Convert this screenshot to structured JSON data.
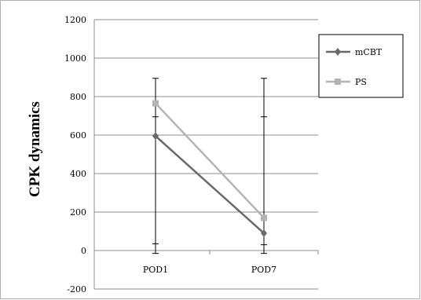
{
  "chart_data": {
    "type": "line",
    "title": "",
    "xlabel": "",
    "ylabel": "CPK dynamics",
    "categories": [
      "POD1",
      "POD7"
    ],
    "ylim": [
      -200,
      1200
    ],
    "yticks": [
      "1200",
      "1000",
      "800",
      "600",
      "400",
      "200",
      "0",
      "-200"
    ],
    "ytick_values": [
      1200,
      1000,
      800,
      600,
      400,
      200,
      0,
      -200
    ],
    "grid": "horizontal",
    "legend_position": "right",
    "series": [
      {
        "name": "mCBT",
        "values": [
          595,
          90
        ],
        "error_low": [
          35,
          30
        ],
        "error_high": [
          695,
          695
        ],
        "color": "#696969",
        "marker": "diamond"
      },
      {
        "name": "PS",
        "values": [
          765,
          170
        ],
        "error_low": [
          -15,
          -15
        ],
        "error_high": [
          895,
          895
        ],
        "color": "#b4b4b4",
        "marker": "square"
      }
    ]
  }
}
